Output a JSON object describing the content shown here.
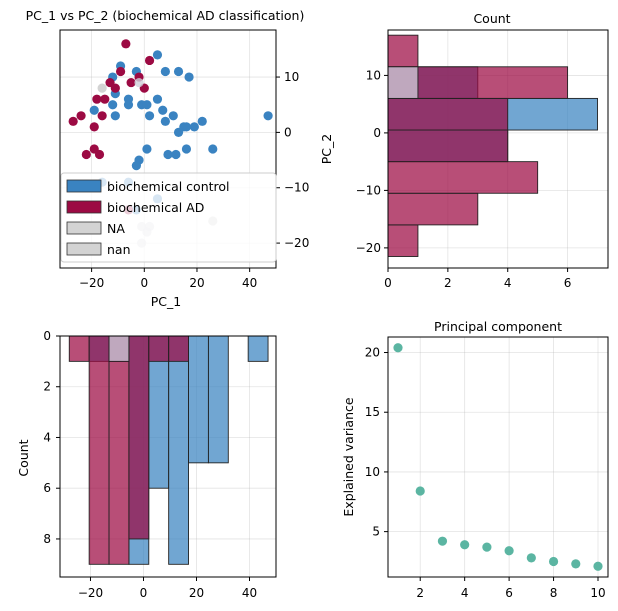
{
  "colors": {
    "control": "#3a83c1",
    "ad": "#9c0a43",
    "na": "#d3d3d3",
    "nan": "#cfcfd9",
    "scree": "#5bb5a2"
  },
  "chart_data": [
    {
      "id": "scatter",
      "type": "scatter",
      "title": "PC_1 vs PC_2 (biochemical AD classification)",
      "xlabel": "PC_1",
      "ylabel": "",
      "xlim": [
        -32,
        50
      ],
      "ylim": [
        -24.5,
        18.5
      ],
      "xticks": [
        -20,
        0,
        20,
        40
      ],
      "yticks": [
        10,
        0,
        -10,
        -20
      ],
      "y_axis_side": "right",
      "grid": true,
      "legend_position": "lower-left",
      "legend": [
        {
          "key": "control",
          "label": "biochemical control"
        },
        {
          "key": "ad",
          "label": "biochemical AD"
        },
        {
          "key": "na",
          "label": "NA"
        },
        {
          "key": "nan",
          "label": "nan"
        }
      ],
      "series": [
        {
          "key": "control",
          "points": [
            [
              -9,
              12
            ],
            [
              -6,
              6
            ],
            [
              -3,
              11
            ],
            [
              5,
              14
            ],
            [
              8,
              11
            ],
            [
              13,
              11
            ],
            [
              17,
              10
            ],
            [
              -12,
              10
            ],
            [
              -11,
              7
            ],
            [
              -1,
              5
            ],
            [
              -6,
              5
            ],
            [
              1,
              5
            ],
            [
              5,
              6
            ],
            [
              -12,
              5
            ],
            [
              7,
              4
            ],
            [
              11,
              3
            ],
            [
              2,
              3
            ],
            [
              8,
              2
            ],
            [
              15,
              1
            ],
            [
              16,
              1
            ],
            [
              13,
              0
            ],
            [
              19,
              1
            ],
            [
              22,
              2
            ],
            [
              -19,
              4
            ],
            [
              -11,
              3
            ],
            [
              1,
              -3
            ],
            [
              -2,
              -5
            ],
            [
              -3,
              -6
            ],
            [
              9,
              -4
            ],
            [
              12,
              -4
            ],
            [
              16,
              -3
            ],
            [
              26,
              -3
            ],
            [
              47,
              3
            ],
            [
              -16,
              -9
            ],
            [
              -6,
              -9
            ],
            [
              5,
              -12
            ],
            [
              -3,
              -14
            ]
          ]
        },
        {
          "key": "ad",
          "points": [
            [
              -7,
              16
            ],
            [
              -2,
              10
            ],
            [
              -5,
              9
            ],
            [
              -9,
              11
            ],
            [
              -13,
              9
            ],
            [
              -15,
              6
            ],
            [
              -18,
              6
            ],
            [
              -24,
              3
            ],
            [
              -16,
              3
            ],
            [
              -19,
              1
            ],
            [
              -27,
              2
            ],
            [
              -19,
              -3
            ],
            [
              -17,
              -4
            ],
            [
              -22,
              -4
            ],
            [
              -11,
              8
            ],
            [
              -6,
              -14
            ],
            [
              2,
              13
            ],
            [
              0,
              8
            ]
          ]
        },
        {
          "key": "na",
          "points": [
            [
              -16,
              8
            ],
            [
              26,
              -16
            ]
          ]
        },
        {
          "key": "nan",
          "points": [
            [
              -2,
              9
            ],
            [
              2,
              -17
            ],
            [
              1,
              -18
            ],
            [
              -1,
              -17
            ],
            [
              -1,
              -20
            ]
          ]
        }
      ]
    },
    {
      "id": "hist-right",
      "type": "bar",
      "orientation": "horizontal",
      "title": "Count",
      "xlabel": "",
      "ylabel": "PC_2",
      "xlim": [
        0,
        7.35
      ],
      "ylim": [
        -23.5,
        17.9
      ],
      "xticks": [
        0,
        2,
        4,
        6
      ],
      "yticks": [
        10,
        0,
        -10,
        -20
      ],
      "grid": true,
      "bins": [
        [
          -21.5,
          -16
        ],
        [
          -16,
          -10.5
        ],
        [
          -10.5,
          -5
        ],
        [
          -5,
          0.5
        ],
        [
          0.5,
          6
        ],
        [
          6,
          11.5
        ],
        [
          11.5,
          17
        ]
      ],
      "series": [
        {
          "key": "control",
          "values": [
            0,
            0,
            0,
            4,
            7,
            3,
            0
          ]
        },
        {
          "key": "ad",
          "values": [
            1,
            3,
            5,
            4,
            4,
            6,
            1
          ]
        },
        {
          "key": "nan",
          "values": [
            0,
            0,
            0,
            0,
            0,
            1,
            0
          ]
        }
      ]
    },
    {
      "id": "hist-bottom",
      "type": "bar",
      "orientation": "vertical-inverted",
      "title": "",
      "xlabel": "",
      "ylabel": "Count",
      "xlim": [
        -31.5,
        50
      ],
      "ylim": [
        0,
        9.5
      ],
      "xticks": [
        -20,
        0,
        20,
        40
      ],
      "yticks": [
        0,
        2,
        4,
        6,
        8
      ],
      "grid": true,
      "bins": [
        [
          -28,
          -20.5
        ],
        [
          -20.5,
          -13
        ],
        [
          -13,
          -5.5
        ],
        [
          -5.5,
          2
        ],
        [
          2,
          9.5
        ],
        [
          9.5,
          17
        ],
        [
          17,
          24.5
        ],
        [
          24.5,
          32
        ],
        [
          32,
          39.5
        ],
        [
          39.5,
          47
        ]
      ],
      "series": [
        {
          "key": "control",
          "values": [
            0,
            1,
            1,
            9,
            6,
            9,
            5,
            5,
            0,
            1
          ]
        },
        {
          "key": "ad",
          "values": [
            1,
            9,
            9,
            8,
            1,
            1,
            0,
            0,
            0,
            0
          ]
        },
        {
          "key": "nan",
          "values": [
            0,
            0,
            1,
            0,
            0,
            0,
            0,
            0,
            0,
            0
          ]
        }
      ]
    },
    {
      "id": "scree",
      "type": "scatter",
      "title": "Principal component",
      "xlabel": "",
      "ylabel": "Explained variance",
      "xlim": [
        0.55,
        10.45
      ],
      "ylim": [
        1.2,
        21.3
      ],
      "xticks": [
        2,
        4,
        6,
        8,
        10
      ],
      "yticks": [
        20,
        15,
        10,
        5
      ],
      "grid": true,
      "x": [
        1,
        2,
        3,
        4,
        5,
        6,
        7,
        8,
        9,
        10
      ],
      "y": [
        20.4,
        8.4,
        4.2,
        3.9,
        3.7,
        3.4,
        2.8,
        2.5,
        2.3,
        2.1
      ]
    }
  ]
}
